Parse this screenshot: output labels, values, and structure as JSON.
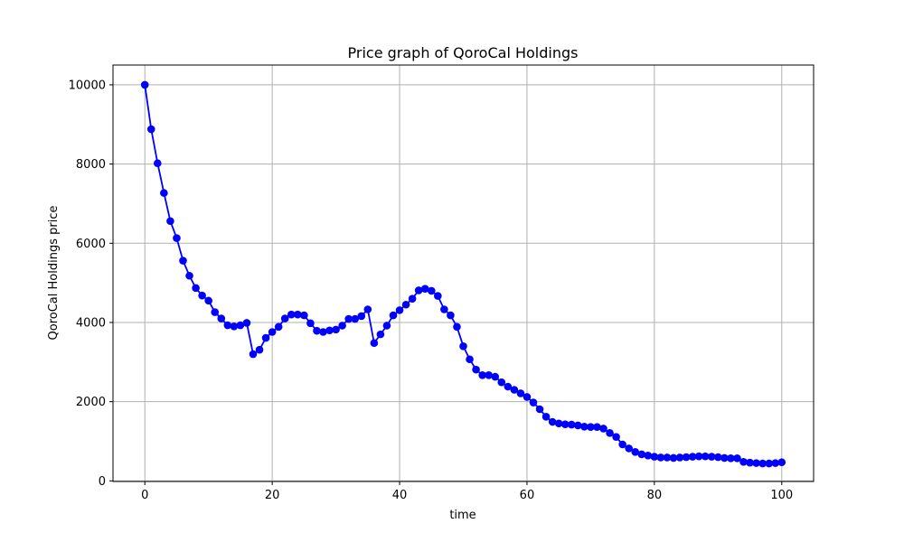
{
  "chart_data": {
    "type": "line",
    "title": "Price graph of QoroCal Holdings",
    "xlabel": "time",
    "ylabel": "QoroCal Holdings price",
    "xlim": [
      -5,
      105
    ],
    "ylim": [
      -15,
      10500
    ],
    "xticks": [
      0,
      20,
      40,
      60,
      80,
      100
    ],
    "yticks": [
      0,
      2000,
      4000,
      6000,
      8000,
      10000
    ],
    "grid": true,
    "line_color": "#0000ff",
    "marker": "circle",
    "series": [
      {
        "x": [
          0,
          1,
          2,
          3,
          4,
          5,
          6,
          7,
          8,
          9,
          10,
          11,
          12,
          13,
          14,
          15,
          16,
          17,
          18,
          19,
          20,
          21,
          22,
          23,
          24,
          25,
          26,
          27,
          28,
          29,
          30,
          31,
          32,
          33,
          34,
          35,
          36,
          37,
          38,
          39,
          40,
          41,
          42,
          43,
          44,
          45,
          46,
          47,
          48,
          49,
          50,
          51,
          52,
          53,
          54,
          55,
          56,
          57,
          58,
          59,
          60,
          61,
          62,
          63,
          64,
          65,
          66,
          67,
          68,
          69,
          70,
          71,
          72,
          73,
          74,
          75,
          76,
          77,
          78,
          79,
          80,
          81,
          82,
          83,
          84,
          85,
          86,
          87,
          88,
          89,
          90,
          91,
          92,
          93,
          94,
          95,
          96,
          97,
          98,
          99,
          100
        ],
        "y": [
          10000,
          8880,
          8020,
          7270,
          6560,
          6130,
          5560,
          5180,
          4870,
          4680,
          4550,
          4260,
          4100,
          3930,
          3900,
          3930,
          3990,
          3200,
          3310,
          3610,
          3760,
          3890,
          4100,
          4200,
          4200,
          4180,
          3980,
          3790,
          3760,
          3800,
          3820,
          3920,
          4090,
          4090,
          4160,
          4330,
          3480,
          3700,
          3920,
          4180,
          4310,
          4450,
          4600,
          4810,
          4850,
          4800,
          4670,
          4330,
          4180,
          3890,
          3400,
          3070,
          2810,
          2670,
          2670,
          2630,
          2490,
          2380,
          2300,
          2210,
          2120,
          1980,
          1810,
          1620,
          1490,
          1450,
          1430,
          1420,
          1400,
          1370,
          1360,
          1360,
          1320,
          1210,
          1110,
          920,
          820,
          730,
          670,
          640,
          610,
          590,
          590,
          580,
          590,
          600,
          610,
          620,
          620,
          610,
          600,
          580,
          570,
          570,
          480,
          460,
          450,
          440,
          440,
          450,
          470
        ]
      }
    ]
  }
}
